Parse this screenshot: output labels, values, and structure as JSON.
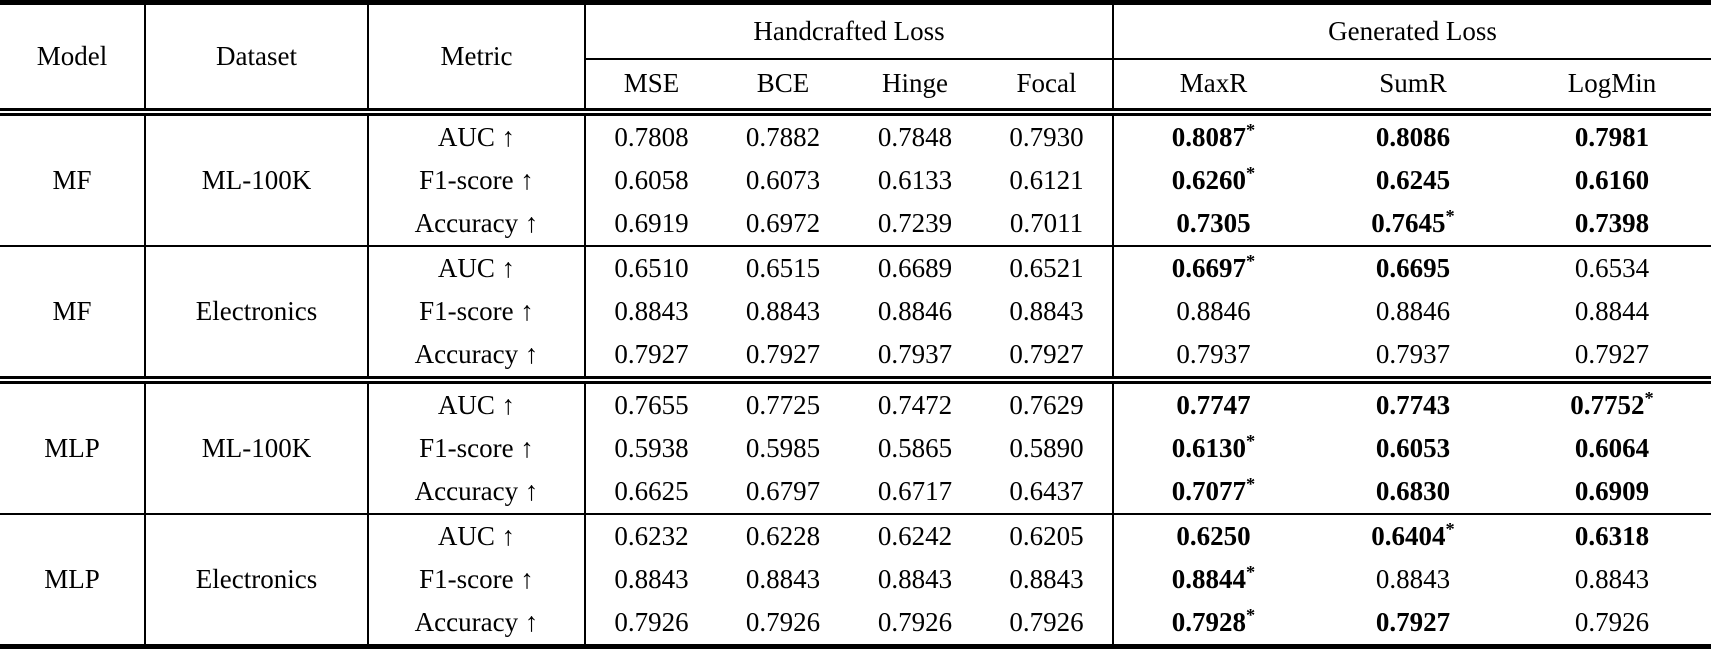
{
  "table": {
    "headers": {
      "model": "Model",
      "dataset": "Dataset",
      "metric": "Metric",
      "handcrafted_group": "Handcrafted Loss",
      "generated_group": "Generated Loss",
      "handcrafted_cols": [
        "MSE",
        "BCE",
        "Hinge",
        "Focal"
      ],
      "generated_cols": [
        "MaxR",
        "SumR",
        "LogMin"
      ]
    },
    "blocks": [
      {
        "model": "MF",
        "dataset": "ML-100K",
        "separator_above": "none",
        "rows": [
          {
            "metric": "AUC ↑",
            "values": [
              "0.7808",
              "0.7882",
              "0.7848",
              "0.7930",
              "0.8087*",
              "0.8086",
              "0.7981"
            ],
            "bold": [
              0,
              0,
              0,
              0,
              1,
              1,
              1
            ]
          },
          {
            "metric": "F1-score ↑",
            "values": [
              "0.6058",
              "0.6073",
              "0.6133",
              "0.6121",
              "0.6260*",
              "0.6245",
              "0.6160"
            ],
            "bold": [
              0,
              0,
              0,
              0,
              1,
              1,
              1
            ]
          },
          {
            "metric": "Accuracy ↑",
            "values": [
              "0.6919",
              "0.6972",
              "0.7239",
              "0.7011",
              "0.7305",
              "0.7645*",
              "0.7398"
            ],
            "bold": [
              0,
              0,
              0,
              0,
              1,
              1,
              1
            ]
          }
        ]
      },
      {
        "model": "MF",
        "dataset": "Electronics",
        "separator_above": "single",
        "rows": [
          {
            "metric": "AUC ↑",
            "values": [
              "0.6510",
              "0.6515",
              "0.6689",
              "0.6521",
              "0.6697*",
              "0.6695",
              "0.6534"
            ],
            "bold": [
              0,
              0,
              0,
              0,
              1,
              1,
              0
            ]
          },
          {
            "metric": "F1-score ↑",
            "values": [
              "0.8843",
              "0.8843",
              "0.8846",
              "0.8843",
              "0.8846",
              "0.8846",
              "0.8844"
            ],
            "bold": [
              0,
              0,
              0,
              0,
              0,
              0,
              0
            ]
          },
          {
            "metric": "Accuracy ↑",
            "values": [
              "0.7927",
              "0.7927",
              "0.7937",
              "0.7927",
              "0.7937",
              "0.7937",
              "0.7927"
            ],
            "bold": [
              0,
              0,
              0,
              0,
              0,
              0,
              0
            ]
          }
        ]
      },
      {
        "model": "MLP",
        "dataset": "ML-100K",
        "separator_above": "double",
        "rows": [
          {
            "metric": "AUC ↑",
            "values": [
              "0.7655",
              "0.7725",
              "0.7472",
              "0.7629",
              "0.7747",
              "0.7743",
              "0.7752*"
            ],
            "bold": [
              0,
              0,
              0,
              0,
              1,
              1,
              1
            ]
          },
          {
            "metric": "F1-score ↑",
            "values": [
              "0.5938",
              "0.5985",
              "0.5865",
              "0.5890",
              "0.6130*",
              "0.6053",
              "0.6064"
            ],
            "bold": [
              0,
              0,
              0,
              0,
              1,
              1,
              1
            ]
          },
          {
            "metric": "Accuracy ↑",
            "values": [
              "0.6625",
              "0.6797",
              "0.6717",
              "0.6437",
              "0.7077*",
              "0.6830",
              "0.6909"
            ],
            "bold": [
              0,
              0,
              0,
              0,
              1,
              1,
              1
            ]
          }
        ]
      },
      {
        "model": "MLP",
        "dataset": "Electronics",
        "separator_above": "single",
        "rows": [
          {
            "metric": "AUC ↑",
            "values": [
              "0.6232",
              "0.6228",
              "0.6242",
              "0.6205",
              "0.6250",
              "0.6404*",
              "0.6318"
            ],
            "bold": [
              0,
              0,
              0,
              0,
              1,
              1,
              1
            ]
          },
          {
            "metric": "F1-score ↑",
            "values": [
              "0.8843",
              "0.8843",
              "0.8843",
              "0.8843",
              "0.8844*",
              "0.8843",
              "0.8843"
            ],
            "bold": [
              0,
              0,
              0,
              0,
              1,
              0,
              0
            ]
          },
          {
            "metric": "Accuracy ↑",
            "values": [
              "0.7926",
              "0.7926",
              "0.7926",
              "0.7926",
              "0.7928*",
              "0.7927",
              "0.7926"
            ],
            "bold": [
              0,
              0,
              0,
              0,
              1,
              1,
              0
            ]
          }
        ]
      }
    ]
  }
}
